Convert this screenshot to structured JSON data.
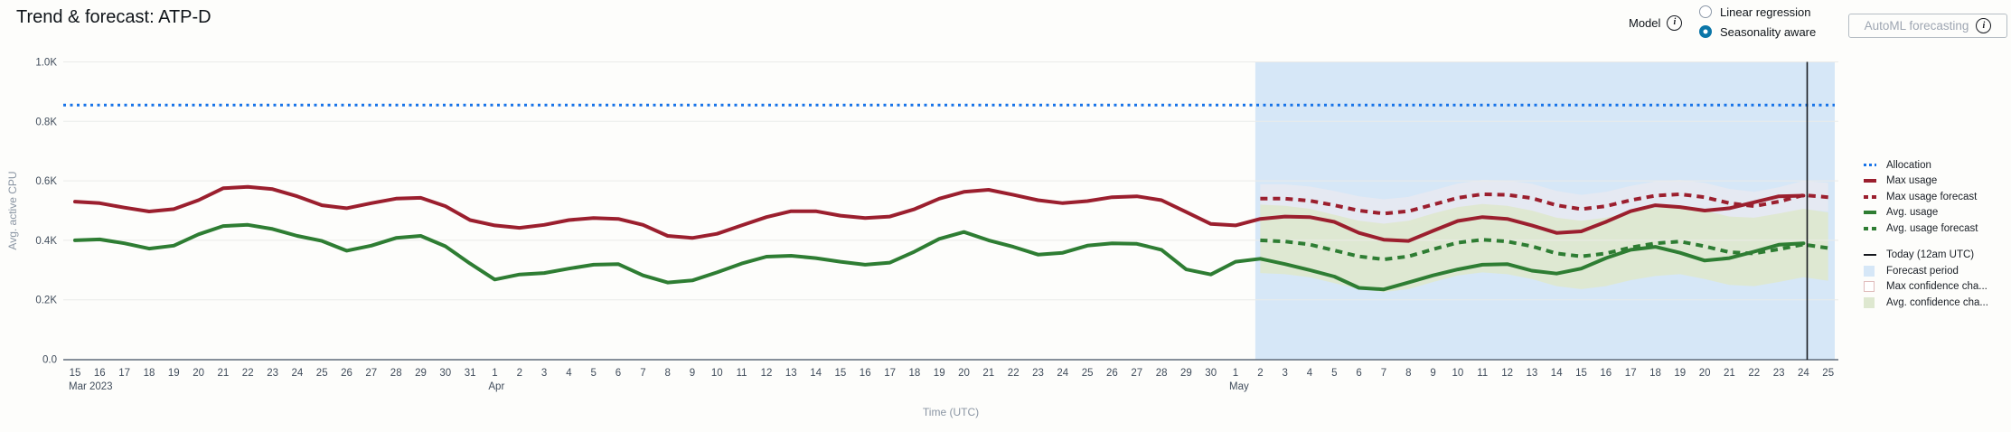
{
  "header": {
    "title": "Trend & forecast: ATP-D"
  },
  "controls": {
    "model_label": "Model",
    "radios": [
      {
        "label": "Linear regression",
        "selected": false
      },
      {
        "label": "Seasonality aware",
        "selected": true
      }
    ],
    "automl_button": {
      "label": "AutoML forecasting"
    }
  },
  "colors": {
    "allocation_blue": "#1773e8",
    "max_red": "#9b1f2e",
    "green": "#2e7d33",
    "today_gray": "#16191f",
    "forecast_bg": "#d6e7f7",
    "max_conf_fill": "#f9ecec",
    "max_conf_border": "#e0bcbc",
    "avg_conf_fill": "#dee8d0",
    "radio_selected": "#0a76a8",
    "tick_text": "#414d5c",
    "muted_text": "#8a95a3",
    "gridline": "#eaebe9",
    "axis_line": "#5f6b7a"
  },
  "chart_data": {
    "type": "line",
    "title": "Trend & forecast: ATP-D",
    "xlabel": "Time (UTC)",
    "ylabel": "Avg. active CPU",
    "ylim": [
      0,
      1000
    ],
    "y_ticks": [
      "0.0",
      "0.2K",
      "0.4K",
      "0.6K",
      "0.8K",
      "1.0K"
    ],
    "x_tick_labels": [
      "15",
      "16",
      "17",
      "18",
      "19",
      "20",
      "21",
      "22",
      "23",
      "24",
      "25",
      "26",
      "27",
      "28",
      "29",
      "30",
      "31",
      "1",
      "2",
      "3",
      "4",
      "5",
      "6",
      "7",
      "8",
      "9",
      "10",
      "11",
      "12",
      "13",
      "14",
      "15",
      "16",
      "17",
      "18",
      "19",
      "20",
      "21",
      "22",
      "23",
      "24",
      "25",
      "26",
      "27",
      "28",
      "29",
      "30",
      "1",
      "2",
      "3",
      "4",
      "5",
      "6",
      "7",
      "8",
      "9",
      "10",
      "11",
      "12",
      "13",
      "14",
      "15",
      "16",
      "17",
      "18",
      "19",
      "20",
      "21",
      "22",
      "23",
      "24",
      "25"
    ],
    "x_month_labels": [
      {
        "index": 0,
        "label": "Mar 2023"
      },
      {
        "index": 17,
        "label": "Apr"
      },
      {
        "index": 47,
        "label": "May"
      }
    ],
    "allocation_value": 855,
    "forecast_start_day": 47.8,
    "today_day": 70.15,
    "legend_position": "right",
    "grid": true,
    "series": [
      {
        "name": "Allocation",
        "kind": "threshold",
        "value": 855
      },
      {
        "name": "Max usage",
        "kind": "solid",
        "color_key": "max_red",
        "start_day": 0,
        "values": [
          530,
          525,
          510,
          497,
          505,
          535,
          575,
          580,
          572,
          548,
          518,
          508,
          525,
          540,
          543,
          515,
          468,
          450,
          442,
          452,
          468,
          475,
          472,
          452,
          415,
          408,
          422,
          450,
          478,
          498,
          498,
          483,
          475,
          480,
          505,
          540,
          563,
          570,
          553,
          535,
          525,
          532,
          545,
          548,
          535,
          495,
          455,
          450,
          472,
          480,
          478,
          462,
          425,
          402,
          398,
          432,
          465,
          478,
          472,
          450,
          425,
          430,
          462,
          498,
          518,
          512,
          500,
          508,
          528,
          548,
          550
        ]
      },
      {
        "name": "Avg. usage",
        "kind": "solid",
        "color_key": "green",
        "start_day": 0,
        "values": [
          400,
          403,
          390,
          372,
          382,
          420,
          448,
          452,
          438,
          415,
          398,
          365,
          382,
          408,
          415,
          380,
          322,
          268,
          285,
          290,
          305,
          318,
          320,
          282,
          258,
          265,
          292,
          322,
          345,
          348,
          340,
          328,
          318,
          325,
          362,
          405,
          428,
          400,
          378,
          352,
          358,
          382,
          390,
          388,
          368,
          302,
          285,
          328,
          338,
          320,
          300,
          278,
          240,
          235,
          258,
          282,
          302,
          318,
          320,
          298,
          288,
          305,
          340,
          368,
          378,
          358,
          332,
          340,
          362,
          385,
          390
        ]
      },
      {
        "name": "Max usage forecast",
        "kind": "dashed",
        "color_key": "max_red",
        "start_day": 48,
        "values": [
          540,
          540,
          533,
          518,
          500,
          490,
          498,
          520,
          543,
          555,
          553,
          542,
          518,
          505,
          515,
          535,
          550,
          555,
          545,
          525,
          515,
          530,
          552,
          545
        ]
      },
      {
        "name": "Avg. usage forecast",
        "kind": "dashed",
        "color_key": "green",
        "start_day": 48,
        "values": [
          400,
          396,
          386,
          366,
          346,
          336,
          346,
          370,
          392,
          402,
          396,
          380,
          356,
          346,
          356,
          376,
          390,
          396,
          380,
          360,
          356,
          370,
          386,
          374
        ]
      }
    ],
    "bands": [
      {
        "name": "Max confidence channel",
        "around": "Max usage forecast",
        "upper_offset": 48,
        "lower_offset": 48,
        "fill_key": "max_conf_fill",
        "opacity": 0.45
      },
      {
        "name": "Avg confidence channel",
        "around": "Avg. usage forecast",
        "upper_offset": 120,
        "lower_offset": 110,
        "fill_key": "avg_conf_fill",
        "opacity": 0.95
      }
    ]
  },
  "legend": {
    "items": [
      {
        "label": "Allocation",
        "swatch": "dotted-line",
        "color_key": "allocation_blue"
      },
      {
        "label": "Max usage",
        "swatch": "solid-line",
        "color_key": "max_red"
      },
      {
        "label": "Max usage forecast",
        "swatch": "dashed-line",
        "color_key": "max_red"
      },
      {
        "label": "Avg. usage",
        "swatch": "solid-line",
        "color_key": "green"
      },
      {
        "label": "Avg. usage forecast",
        "swatch": "dashed-line",
        "color_key": "green"
      },
      {
        "label": "Today (12am UTC)",
        "swatch": "thin-line",
        "color_key": "today_gray",
        "group_start": true
      },
      {
        "label": "Forecast period",
        "swatch": "fill-square",
        "color_key": "forecast_bg"
      },
      {
        "label": "Max confidence cha...",
        "swatch": "outline-square",
        "color_key": "max_conf_border"
      },
      {
        "label": "Avg. confidence cha...",
        "swatch": "fill-square",
        "color_key": "avg_conf_fill"
      }
    ]
  }
}
